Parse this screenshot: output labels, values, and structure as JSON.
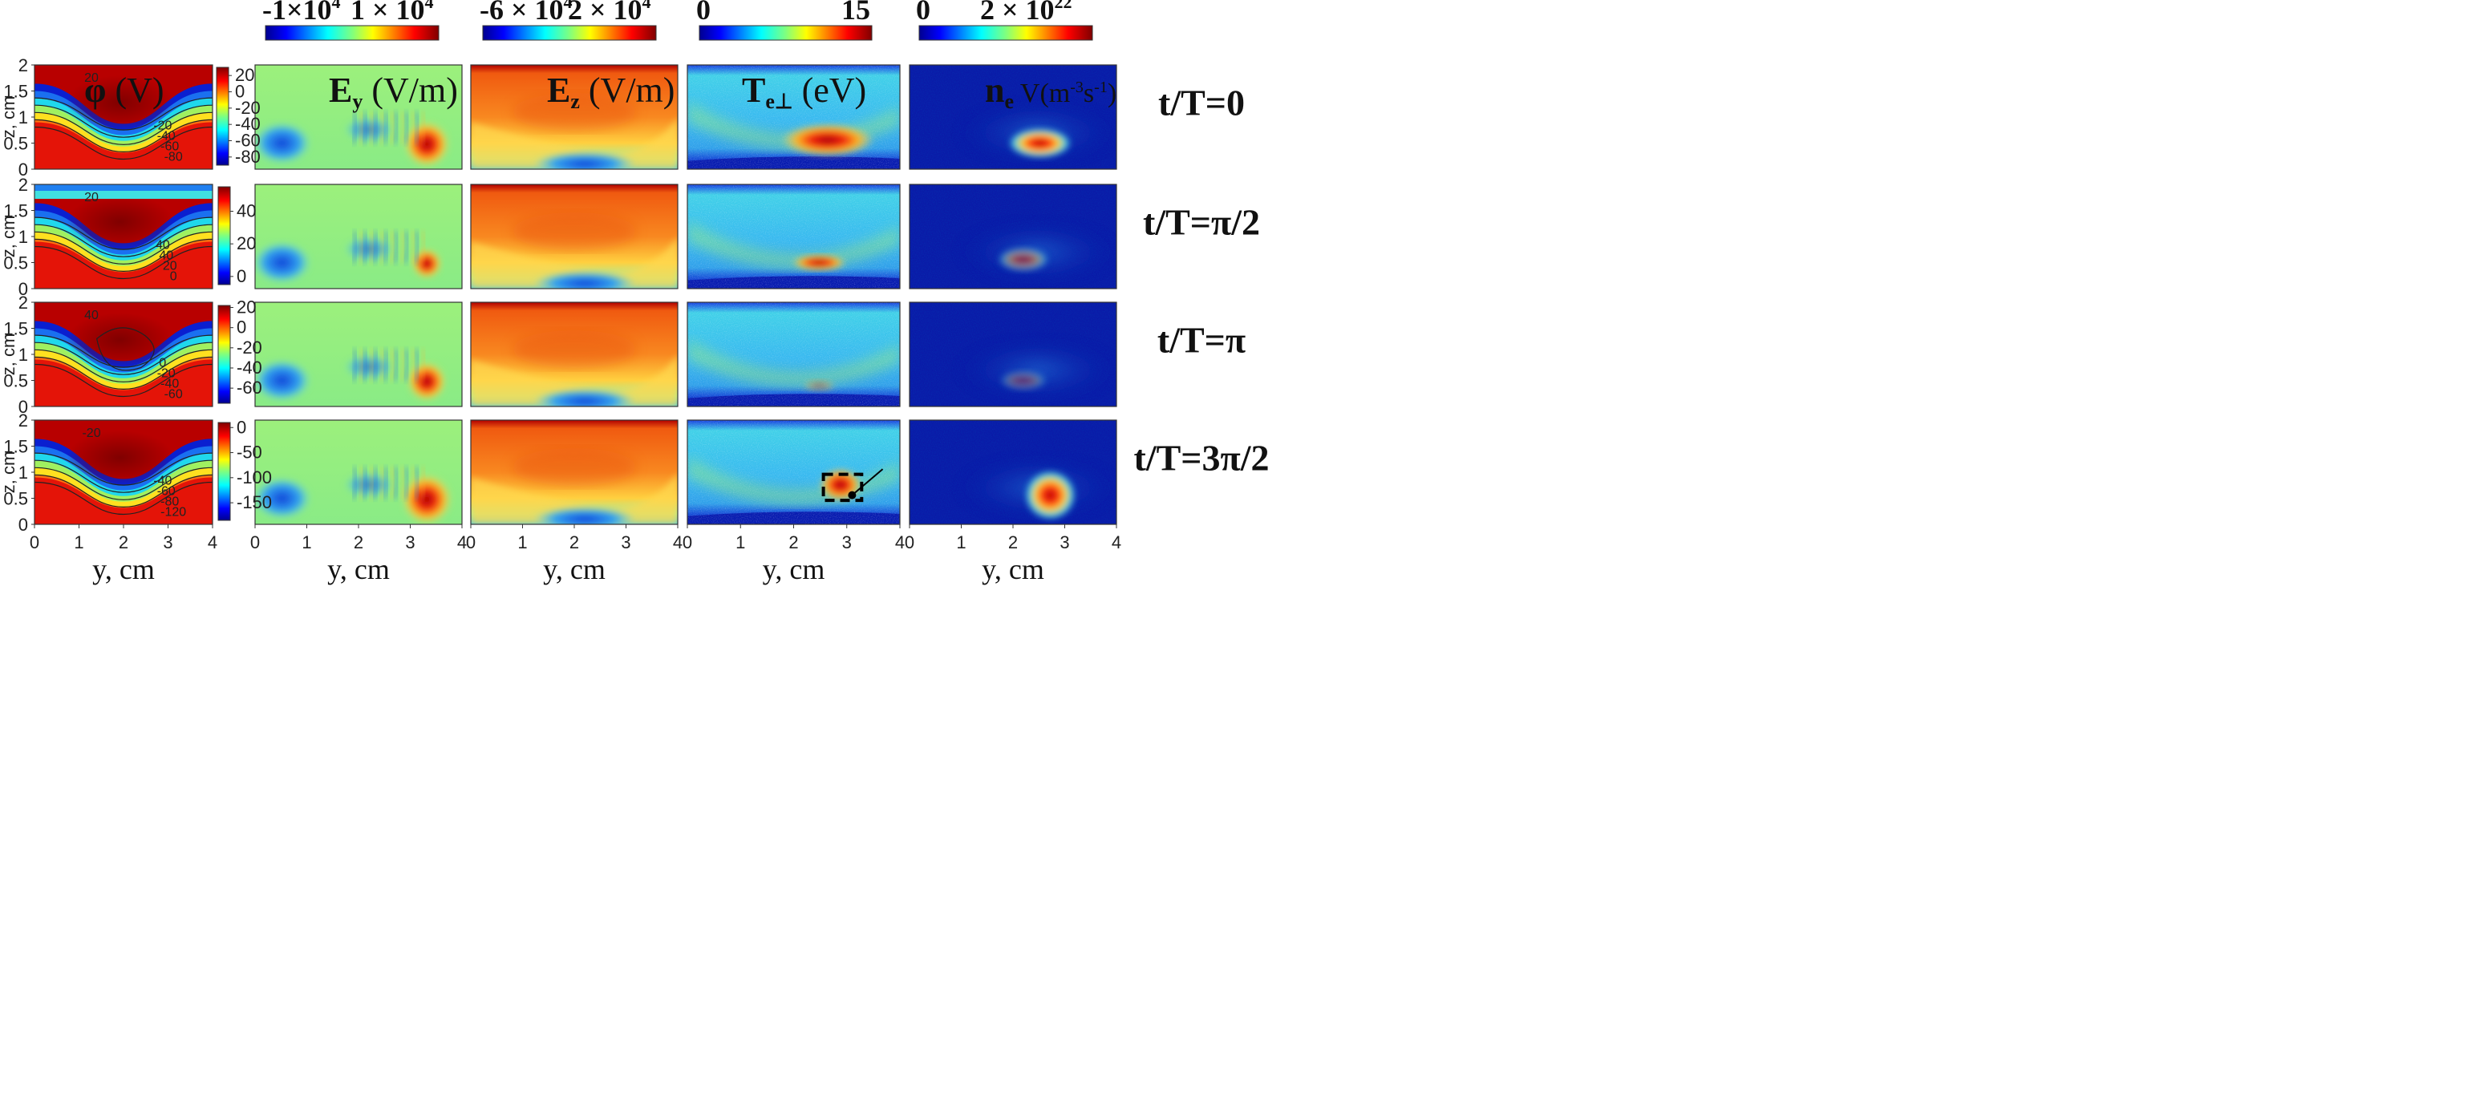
{
  "chart_data": {
    "type": "heatmap",
    "title": "",
    "xlabel": "y, cm",
    "ylabel": "z, cm",
    "xlim": [
      0,
      4
    ],
    "ylim": [
      0,
      2
    ],
    "x_ticks": [
      "0",
      "1",
      "2",
      "3",
      "4"
    ],
    "y_ticks": [
      "0",
      "0.5",
      "1",
      "1.5",
      "2"
    ],
    "colormap": "jet",
    "row_labels": [
      "t/T=0",
      "t/T=π/2",
      "t/T=π",
      "t/T=3π/2"
    ],
    "columns": [
      {
        "quantity": "φ (V)",
        "title_main": "φ",
        "title_unit": " (V)"
      },
      {
        "quantity": "Ey (V/m)",
        "title_main": "E",
        "title_sub": "y",
        "title_unit": " (V/m)",
        "colorbar": {
          "min_label": "-1×10",
          "min_exp": "4",
          "max_label": "1 × 10",
          "max_exp": "4"
        }
      },
      {
        "quantity": "Ez (V/m)",
        "title_main": "E",
        "title_sub": "z",
        "title_unit": " (V/m)",
        "colorbar": {
          "min_label": "-6 × 10",
          "min_exp": "4",
          "max_label": "2  × 10",
          "max_exp": "4"
        }
      },
      {
        "quantity": "Te⊥ (eV)",
        "title_main": "T",
        "title_sub": "e⊥",
        "title_unit": " (eV)",
        "colorbar": {
          "min_label": "0",
          "max_label": "15"
        }
      },
      {
        "quantity": "nₑV (m⁻³s⁻¹)",
        "title_main": "n",
        "title_sub": "e",
        "title_unit": " V(m",
        "title_sup": "-3",
        "title_mid": "s",
        "title_sup2": "-1",
        "title_end": ")",
        "colorbar": {
          "min_label": "0",
          "max_label": "2 × 10",
          "max_exp": "22"
        }
      }
    ],
    "phi_colorbars": [
      {
        "ticks": [
          "20",
          "0",
          "-20",
          "-40",
          "-60",
          "-80"
        ],
        "range": [
          -90,
          30
        ]
      },
      {
        "ticks": [
          "40",
          "20",
          "0"
        ],
        "range": [
          -5,
          55
        ]
      },
      {
        "ticks": [
          "20",
          "0",
          "-20",
          "-40",
          "-60"
        ],
        "range": [
          -75,
          22
        ]
      },
      {
        "ticks": [
          "0",
          "-50",
          "-100",
          "-150"
        ],
        "range": [
          -185,
          10
        ]
      }
    ],
    "phi_contour_labels": [
      [
        "20",
        "-20",
        "-40",
        "-60",
        "-80"
      ],
      [
        "20",
        "40",
        "40",
        "20",
        "0"
      ],
      [
        "40",
        "0",
        "-20",
        "-40",
        "-60"
      ],
      [
        "-20",
        "-40",
        "-60",
        "-80",
        "-120"
      ]
    ]
  }
}
